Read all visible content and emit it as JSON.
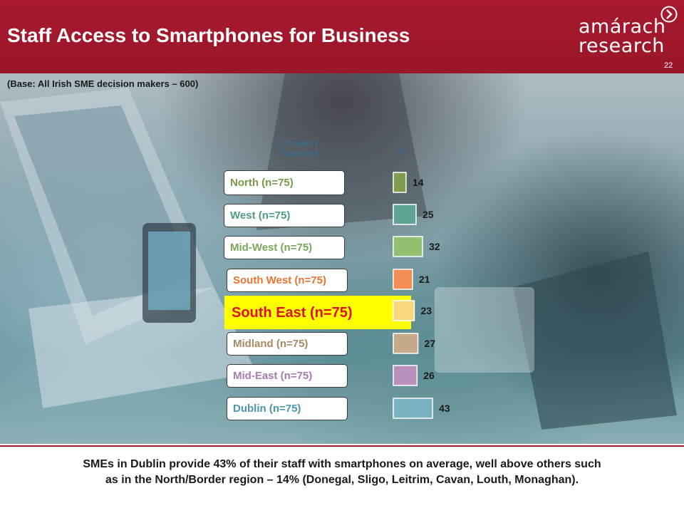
{
  "header": {
    "title": "Staff Access to Smartphones for Business",
    "logo_line1": "amárach",
    "logo_line2": "research",
    "page_number": "22"
  },
  "base_note": "(Base: All Irish SME decision makers – 600)",
  "column_headers": {
    "company_supplied": [
      "Company",
      "Supplied"
    ],
    "percent": "%"
  },
  "colors": {
    "header_bg": "#a8192e",
    "highlight": "#ffff00"
  },
  "chart_data": {
    "type": "bar",
    "orientation": "horizontal",
    "categories": [
      "North (n=75)",
      "West (n=75)",
      "Mid-West (n=75)",
      "South West (n=75)",
      "South East (n=75)",
      "Midland (n=75)",
      "Mid-East (n=75)",
      "Dublin (n=75)"
    ],
    "values": [
      14,
      25,
      32,
      21,
      23,
      27,
      26,
      43
    ],
    "bar_colors": [
      "#7f9d4e",
      "#5fa493",
      "#93bf70",
      "#f58d54",
      "#f9d77e",
      "#c5a98a",
      "#b98fbc",
      "#79b3c1"
    ],
    "label_colors": [
      "#7a9a48",
      "#4f9a8a",
      "#7aa85a",
      "#e8742f",
      "#e0101a",
      "#a88a62",
      "#a97cb0",
      "#4a95a8"
    ],
    "highlighted_category": "South East (n=75)",
    "ylabel": "%",
    "xlim": [
      0,
      50
    ]
  },
  "footer": {
    "line1": "SMEs in Dublin provide 43% of their staff with smartphones on average, well above others such",
    "line2": "as in the North/Border region – 14% (Donegal, Sligo, Leitrim, Cavan, Louth, Monaghan)."
  }
}
